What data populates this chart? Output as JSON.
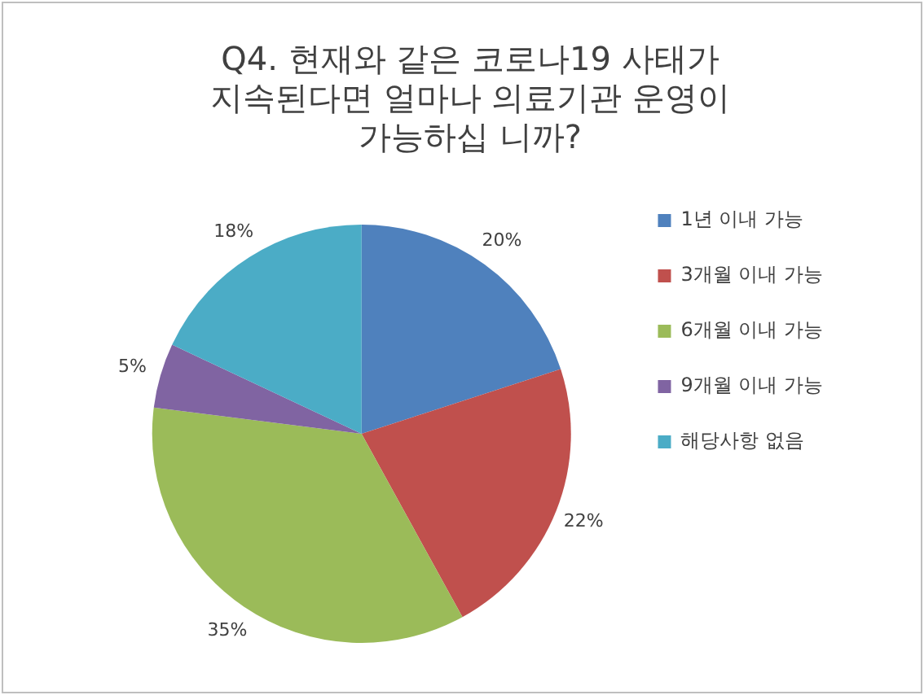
{
  "chart_data": {
    "type": "pie",
    "title": "Q4. 현재와 같은 코로나19 사태가\n지속된다면 얼마나 의료기관 운영이\n가능하십 니까?",
    "categories": [
      "1년 이내 가능",
      "3개월 이내 가능",
      "6개월 이내 가능",
      "9개월 이내 가능",
      "해당사항 없음"
    ],
    "values": [
      20,
      22,
      35,
      5,
      18
    ],
    "colors": [
      "#4f81bd",
      "#c0504d",
      "#9bbb59",
      "#8064a2",
      "#4bacc6"
    ],
    "value_labels": [
      "20%",
      "22%",
      "35%",
      "5%",
      "18%"
    ],
    "legend": "right"
  }
}
